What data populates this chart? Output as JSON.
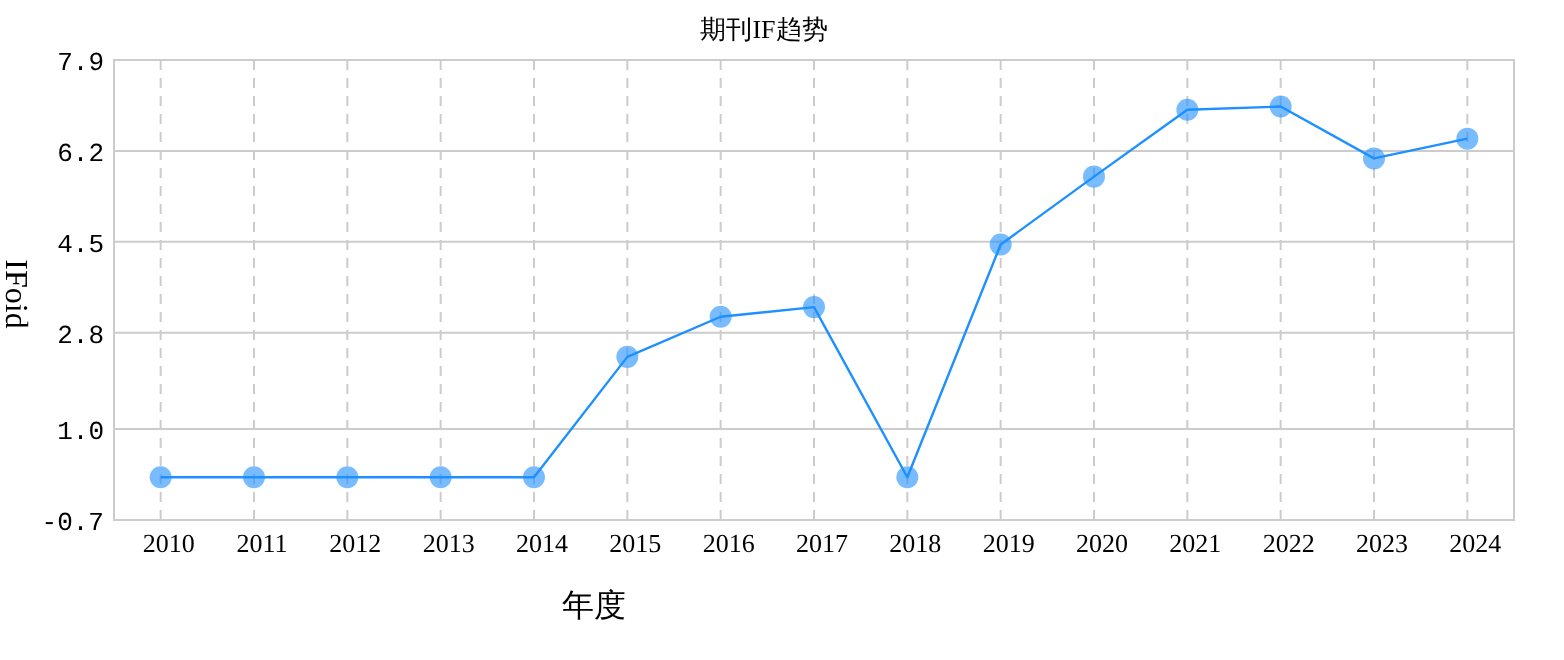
{
  "chart_data": {
    "type": "line",
    "title": "期刊IF趋势",
    "xlabel": "年度",
    "ylabel": "IFoid",
    "categories": [
      "2010",
      "2011",
      "2012",
      "2013",
      "2014",
      "2015",
      "2016",
      "2017",
      "2018",
      "2019",
      "2020",
      "2021",
      "2022",
      "2023",
      "2024"
    ],
    "series": [
      {
        "color": "#1e90ff",
        "values": [
          0.1,
          0.1,
          0.1,
          0.1,
          0.1,
          2.35,
          3.1,
          3.28,
          0.1,
          4.45,
          5.72,
          6.97,
          7.03,
          6.06,
          6.43
        ]
      }
    ],
    "ylim": [
      -0.7,
      7.9
    ],
    "yticks": [
      -0.7,
      {
        "value": 1,
        "label": "1.0"
      },
      2.8,
      4.5,
      6.2,
      7.9
    ],
    "grid": true,
    "marker": "circle"
  }
}
